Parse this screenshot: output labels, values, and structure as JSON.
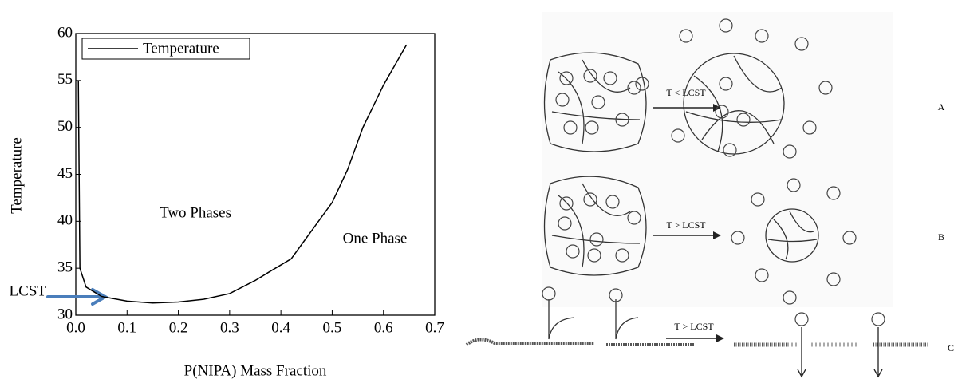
{
  "chart_data": {
    "type": "line",
    "x": [
      0.005,
      0.008,
      0.02,
      0.05,
      0.1,
      0.15,
      0.2,
      0.25,
      0.3,
      0.35,
      0.38,
      0.42,
      0.46,
      0.5,
      0.53,
      0.56,
      0.6,
      0.645
    ],
    "series": [
      {
        "name": "Temperature",
        "color": "#000000",
        "values": [
          55,
          35,
          33,
          32,
          31.5,
          31.3,
          31.4,
          31.7,
          32.3,
          33.7,
          34.7,
          36,
          39,
          42,
          45.5,
          50,
          54.5,
          58.8
        ]
      }
    ],
    "xlim": [
      0,
      0.7
    ],
    "xticks": [
      {
        "value": 0,
        "label": "0.0"
      },
      0.1,
      0.2,
      0.3,
      0.4,
      0.5,
      0.6,
      0.7
    ],
    "ylim": [
      30,
      60
    ],
    "yticks": [
      30,
      35,
      40,
      45,
      50,
      55,
      60
    ],
    "x_label": "P(NIPA) Mass Fraction",
    "y_label": "Temperature",
    "legend": "upper left",
    "annotations": [
      "Two Phases",
      "One Phase",
      "LCST"
    ]
  },
  "diagram": {
    "rows": [
      {
        "arrow_label": "T < LCST",
        "tag": "A"
      },
      {
        "arrow_label": "T > LCST",
        "tag": "B"
      },
      {
        "arrow_label": "T > LCST",
        "tag": "C"
      }
    ]
  }
}
